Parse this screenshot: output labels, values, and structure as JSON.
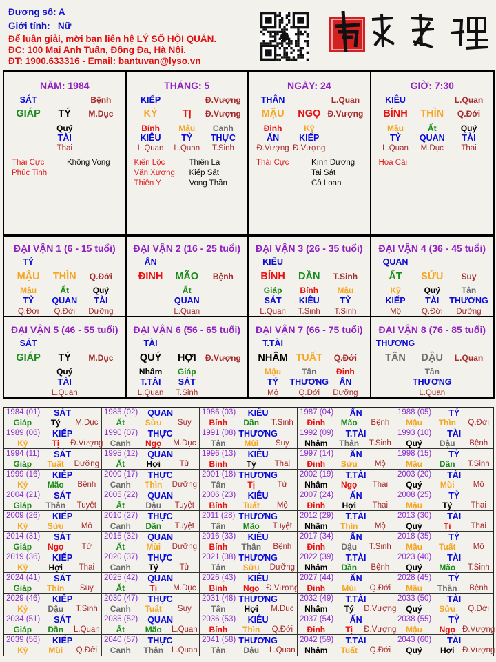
{
  "header": {
    "name_line": "Đương số: A",
    "gender_line": "Giới tính:   Nữ",
    "contact_line1": "Để luận giải, mời bạn liên hệ LÝ SỐ HỘI QUÁN.",
    "contact_line2": "ĐC: 100 Mai Anh Tuấn, Đống Đa, Hà Nội.",
    "contact_line3": "ĐT: 1900.633316 - Email: bantuvan@lyso.vn",
    "logo_text": "南越數理"
  },
  "colors": {
    "title": "#9020c0",
    "ten_god": "#0a0ad8",
    "stage": "#a52a2a",
    "wood": "#1a8a1a",
    "fire": "#e81010",
    "earth": "#f5a623",
    "metal": "#6e6e6e",
    "water": "#000000",
    "star_good": "#e02020",
    "star_bad": "#111111",
    "seal": "#d42020"
  },
  "element_of": {
    "giáp": "wood",
    "ất": "wood",
    "bính": "fire",
    "đinh": "fire",
    "mậu": "earth",
    "kỷ": "earth",
    "canh": "metal",
    "tân": "metal",
    "nhâm": "water",
    "quý": "water",
    "tý": "water",
    "hợi": "water",
    "dần": "wood",
    "mão": "wood",
    "tị": "fire",
    "ngọ": "fire",
    "thìn": "earth",
    "tuất": "earth",
    "sửu": "earth",
    "mùi": "earth",
    "thân": "metal",
    "dậu": "metal"
  },
  "pillars": [
    {
      "title": "NĂM: 1984",
      "god": "SÁT",
      "stage_top": "Bệnh",
      "stem": "GIÁP",
      "branch": "TÝ",
      "stage": "M.Dục",
      "hidden": [
        {
          "stem": "Quý",
          "god": "TÀI",
          "stage": "Thai"
        }
      ],
      "stars_left": [
        "Thái Cực",
        "Phúc Tinh"
      ],
      "stars_right": [
        "Không Vong"
      ]
    },
    {
      "title": "THÁNG: 5",
      "god": "KIẾP",
      "stage_top": "Đ.Vượng",
      "stem": "KỶ",
      "branch": "TỊ",
      "stage": "Đ.Vượng",
      "hidden": [
        {
          "stem": "Bính",
          "god": "KIÊU",
          "stage": "L.Quan"
        },
        {
          "stem": "Mậu",
          "god": "TỶ",
          "stage": "L.Quan"
        },
        {
          "stem": "Canh",
          "god": "THỰC",
          "stage": "T.Sinh"
        }
      ],
      "stars_left": [
        "Kiến Lộc",
        "Văn Xương",
        "Thiên Y"
      ],
      "stars_right": [
        "Thiên La",
        "Kiếp Sát",
        "Vong Thần"
      ]
    },
    {
      "title": "NGÀY: 24",
      "god": "THÂN",
      "stage_top": "L.Quan",
      "stem": "MẬU",
      "branch": "NGỌ",
      "stage": "Đ.Vượng",
      "hidden": [
        {
          "stem": "Đinh",
          "god": "ẤN",
          "stage": "Đ.Vượng"
        },
        {
          "stem": "Kỷ",
          "god": "KIẾP",
          "stage": "Đ.Vượng"
        }
      ],
      "stars_left": [
        "Thái Cực"
      ],
      "stars_right": [
        "Kình Dương",
        "Tai Sát",
        "Cô Loan"
      ]
    },
    {
      "title": "GIỜ: 7:30",
      "god": "KIÊU",
      "stage_top": "L.Quan",
      "stem": "BÍNH",
      "branch": "THÌN",
      "stage": "Q.Đới",
      "hidden": [
        {
          "stem": "Mậu",
          "god": "TỶ",
          "stage": "L.Quan"
        },
        {
          "stem": "Ất",
          "god": "QUAN",
          "stage": "M.Dục"
        },
        {
          "stem": "Quý",
          "god": "TÀI",
          "stage": "Thai"
        }
      ],
      "stars_left": [
        "Hoa Cái"
      ],
      "stars_right": []
    }
  ],
  "dai_van": [
    {
      "title": "ĐẠI VẬN 1 (6 - 15 tuổi)",
      "god": "TỶ",
      "stem": "MẬU",
      "branch": "THÌN",
      "stage": "Q.Đới",
      "hidden": [
        {
          "stem": "Mậu",
          "god": "TỶ",
          "stage": "Q.Đới"
        },
        {
          "stem": "Ất",
          "god": "QUAN",
          "stage": "Q.Đới"
        },
        {
          "stem": "Quý",
          "god": "TÀI",
          "stage": "Dưỡng"
        }
      ]
    },
    {
      "title": "ĐẠI VẬN 2 (16 - 25 tuổi)",
      "god": "ẤN",
      "stem": "ĐINH",
      "branch": "MÃO",
      "stage": "Bệnh",
      "hidden": [
        {
          "stem": "Ất",
          "god": "QUAN",
          "stage": "L.Quan"
        }
      ]
    },
    {
      "title": "ĐẠI VẬN 3 (26 - 35 tuổi)",
      "god": "KIÊU",
      "stem": "BÍNH",
      "branch": "DẦN",
      "stage": "T.Sinh",
      "hidden": [
        {
          "stem": "Giáp",
          "god": "SÁT",
          "stage": "L.Quan"
        },
        {
          "stem": "Bính",
          "god": "KIÊU",
          "stage": "T.Sinh"
        },
        {
          "stem": "Mậu",
          "god": "TỶ",
          "stage": "T.Sinh"
        }
      ]
    },
    {
      "title": "ĐẠI VẬN 4 (36 - 45 tuổi)",
      "god": "QUAN",
      "stem": "ẤT",
      "branch": "SỬU",
      "stage": "Suy",
      "hidden": [
        {
          "stem": "Kỷ",
          "god": "KIẾP",
          "stage": "Mộ"
        },
        {
          "stem": "Quý",
          "god": "TÀI",
          "stage": "Q.Đới"
        },
        {
          "stem": "Tân",
          "god": "THƯƠNG",
          "stage": "Dưỡng"
        }
      ]
    },
    {
      "title": "ĐẠI VẬN 5 (46 - 55 tuổi)",
      "god": "SÁT",
      "stem": "GIÁP",
      "branch": "TÝ",
      "stage": "M.Dục",
      "hidden": [
        {
          "stem": "Quý",
          "god": "TÀI",
          "stage": "L.Quan"
        }
      ]
    },
    {
      "title": "ĐẠI VẬN 6 (56 - 65 tuổi)",
      "god": "TÀI",
      "stem": "QUÝ",
      "branch": "HỢI",
      "stage": "Đ.Vượng",
      "hidden": [
        {
          "stem": "Nhâm",
          "god": "T.TÀI",
          "stage": "L.Quan"
        },
        {
          "stem": "Giáp",
          "god": "SÁT",
          "stage": "T.Sinh"
        }
      ]
    },
    {
      "title": "ĐẠI VẬN 7 (66 - 75 tuổi)",
      "god": "T.TÀI",
      "stem": "NHÂM",
      "branch": "TUẤT",
      "stage": "Q.Đới",
      "hidden": [
        {
          "stem": "Mậu",
          "god": "TỶ",
          "stage": "Mộ"
        },
        {
          "stem": "Tân",
          "god": "THƯƠNG",
          "stage": "Q.Đới"
        },
        {
          "stem": "Đinh",
          "god": "ẤN",
          "stage": "Dưỡng"
        }
      ]
    },
    {
      "title": "ĐẠI VẬN 8 (76 - 85 tuổi)",
      "god": "THƯƠNG",
      "stem": "TÂN",
      "branch": "DẬU",
      "stage": "L.Quan",
      "hidden": [
        {
          "stem": "Tân",
          "god": "THƯƠNG",
          "stage": "L.Quan"
        }
      ]
    }
  ],
  "annual": [
    [
      "1984 (01)",
      "SÁT",
      "Giáp",
      "Tý",
      "M.Dục"
    ],
    [
      "1985 (02)",
      "QUAN",
      "Ất",
      "Sửu",
      "Suy"
    ],
    [
      "1986 (03)",
      "KIÊU",
      "Bính",
      "Dần",
      "T.Sinh"
    ],
    [
      "1987 (04)",
      "ẤN",
      "Đinh",
      "Mão",
      "Bệnh"
    ],
    [
      "1988 (05)",
      "TỶ",
      "Mậu",
      "Thìn",
      "Q.Đới"
    ],
    [
      "1989 (06)",
      "KIẾP",
      "Kỷ",
      "Tị",
      "Đ.Vượng"
    ],
    [
      "1990 (07)",
      "THỰC",
      "Canh",
      "Ngọ",
      "M.Dục"
    ],
    [
      "1991 (08)",
      "THƯƠNG",
      "Tân",
      "Mùi",
      "Suy"
    ],
    [
      "1992 (09)",
      "T.TÀI",
      "Nhâm",
      "Thân",
      "T.Sinh"
    ],
    [
      "1993 (10)",
      "TÀI",
      "Quý",
      "Dậu",
      "Bệnh"
    ],
    [
      "1994 (11)",
      "SÁT",
      "Giáp",
      "Tuất",
      "Dưỡng"
    ],
    [
      "1995 (12)",
      "QUAN",
      "Ất",
      "Hợi",
      "Tử"
    ],
    [
      "1996 (13)",
      "KIÊU",
      "Bính",
      "Tý",
      "Thai"
    ],
    [
      "1997 (14)",
      "ẤN",
      "Đinh",
      "Sửu",
      "Mộ"
    ],
    [
      "1998 (15)",
      "TỶ",
      "Mậu",
      "Dần",
      "T.Sinh"
    ],
    [
      "1999 (16)",
      "KIẾP",
      "Kỷ",
      "Mão",
      "Bệnh"
    ],
    [
      "2000 (17)",
      "THỰC",
      "Canh",
      "Thìn",
      "Dưỡng"
    ],
    [
      "2001 (18)",
      "THƯƠNG",
      "Tân",
      "Tị",
      "Tử"
    ],
    [
      "2002 (19)",
      "T.TÀI",
      "Nhâm",
      "Ngọ",
      "Thai"
    ],
    [
      "2003 (20)",
      "TÀI",
      "Quý",
      "Mùi",
      "Mộ"
    ],
    [
      "2004 (21)",
      "SÁT",
      "Giáp",
      "Thân",
      "Tuyệt"
    ],
    [
      "2005 (22)",
      "QUAN",
      "Ất",
      "Dậu",
      "Tuyệt"
    ],
    [
      "2006 (23)",
      "KIÊU",
      "Bính",
      "Tuất",
      "Mộ"
    ],
    [
      "2007 (24)",
      "ẤN",
      "Đinh",
      "Hợi",
      "Thai"
    ],
    [
      "2008 (25)",
      "TỶ",
      "Mậu",
      "Tý",
      "Thai"
    ],
    [
      "2009 (26)",
      "KIẾP",
      "Kỷ",
      "Sửu",
      "Mộ"
    ],
    [
      "2010 (27)",
      "THỰC",
      "Canh",
      "Dần",
      "Tuyệt"
    ],
    [
      "2011 (28)",
      "THƯƠNG",
      "Tân",
      "Mão",
      "Tuyệt"
    ],
    [
      "2012 (29)",
      "T.TÀI",
      "Nhâm",
      "Thìn",
      "Mộ"
    ],
    [
      "2013 (30)",
      "TÀI",
      "Quý",
      "Tị",
      "Thai"
    ],
    [
      "2014 (31)",
      "SÁT",
      "Giáp",
      "Ngọ",
      "Tử"
    ],
    [
      "2015 (32)",
      "QUAN",
      "Ất",
      "Mùi",
      "Dưỡng"
    ],
    [
      "2016 (33)",
      "KIÊU",
      "Bính",
      "Thân",
      "Bệnh"
    ],
    [
      "2017 (34)",
      "ẤN",
      "Đinh",
      "Dậu",
      "T.Sinh"
    ],
    [
      "2018 (35)",
      "TỶ",
      "Mậu",
      "Tuất",
      "Mộ"
    ],
    [
      "2019 (36)",
      "KIẾP",
      "Kỷ",
      "Hợi",
      "Thai"
    ],
    [
      "2020 (37)",
      "THỰC",
      "Canh",
      "Tý",
      "Tử"
    ],
    [
      "2021 (38)",
      "THƯƠNG",
      "Tân",
      "Sửu",
      "Dưỡng"
    ],
    [
      "2022 (39)",
      "T.TÀI",
      "Nhâm",
      "Dần",
      "Bệnh"
    ],
    [
      "2023 (40)",
      "TÀI",
      "Quý",
      "Mão",
      "T.Sinh"
    ],
    [
      "2024 (41)",
      "SÁT",
      "Giáp",
      "Thìn",
      "Suy"
    ],
    [
      "2025 (42)",
      "QUAN",
      "Ất",
      "Tị",
      "M.Dục"
    ],
    [
      "2026 (43)",
      "KIÊU",
      "Bính",
      "Ngọ",
      "Đ.Vượng"
    ],
    [
      "2027 (44)",
      "ẤN",
      "Đinh",
      "Mùi",
      "Q.Đới"
    ],
    [
      "2028 (45)",
      "TỶ",
      "Mậu",
      "Thân",
      "Bệnh"
    ],
    [
      "2029 (46)",
      "KIẾP",
      "Kỷ",
      "Dậu",
      "T.Sinh"
    ],
    [
      "2030 (47)",
      "THỰC",
      "Canh",
      "Tuất",
      "Suy"
    ],
    [
      "2031 (48)",
      "THƯƠNG",
      "Tân",
      "Hợi",
      "M.Dục"
    ],
    [
      "2032 (49)",
      "T.TÀI",
      "Nhâm",
      "Tý",
      "Đ.Vượng"
    ],
    [
      "2033 (50)",
      "TÀI",
      "Quý",
      "Sửu",
      "Q.Đới"
    ],
    [
      "2034 (51)",
      "SÁT",
      "Giáp",
      "Dần",
      "L.Quan"
    ],
    [
      "2035 (52)",
      "QUAN",
      "Ất",
      "Mão",
      "L.Quan"
    ],
    [
      "2036 (53)",
      "KIÊU",
      "Bính",
      "Thìn",
      "Q.Đới"
    ],
    [
      "2037 (54)",
      "ẤN",
      "Đinh",
      "Tị",
      "Đ.Vượng"
    ],
    [
      "2038 (55)",
      "TỶ",
      "Mậu",
      "Ngọ",
      "Đ.Vượng"
    ],
    [
      "2039 (56)",
      "KIẾP",
      "Kỷ",
      "Mùi",
      "Q.Đới"
    ],
    [
      "2040 (57)",
      "THỰC",
      "Canh",
      "Thân",
      "L.Quan"
    ],
    [
      "2041 (58)",
      "THƯƠNG",
      "Tân",
      "Dậu",
      "L.Quan"
    ],
    [
      "2042 (59)",
      "T.TÀI",
      "Nhâm",
      "Tuất",
      "Q.Đới"
    ],
    [
      "2043 (60)",
      "TÀI",
      "Quý",
      "Hợi",
      "Đ.Vượng"
    ]
  ]
}
